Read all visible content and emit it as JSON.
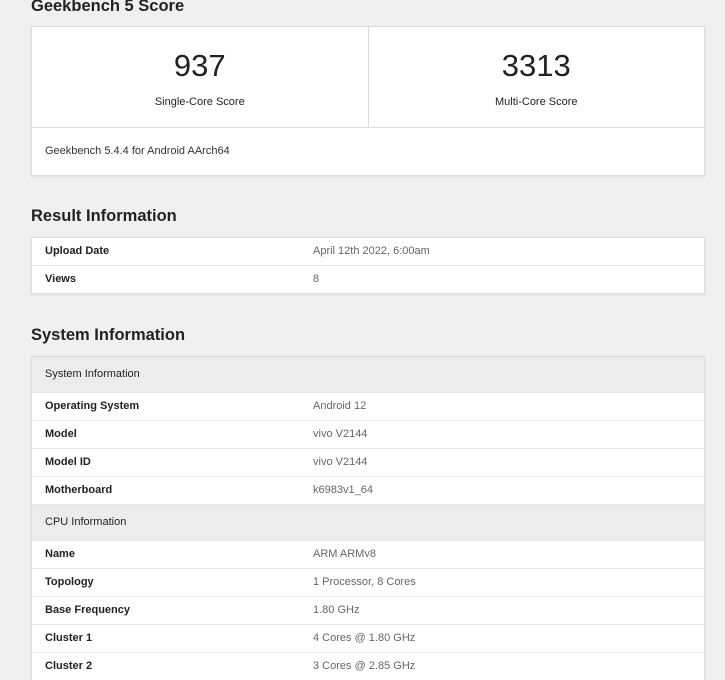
{
  "score_section": {
    "title": "Geekbench 5 Score",
    "single_value": "937",
    "single_label": "Single-Core Score",
    "multi_value": "3313",
    "multi_label": "Multi-Core Score",
    "version": "Geekbench 5.4.4 for Android AArch64"
  },
  "result_section": {
    "title": "Result Information",
    "rows": [
      {
        "k": "Upload Date",
        "v": "April 12th 2022, 6:00am"
      },
      {
        "k": "Views",
        "v": "8"
      }
    ]
  },
  "system_section": {
    "title": "System Information",
    "groups": [
      {
        "header": "System Information",
        "rows": [
          {
            "k": "Operating System",
            "v": "Android 12"
          },
          {
            "k": "Model",
            "v": "vivo V2144"
          },
          {
            "k": "Model ID",
            "v": "vivo V2144"
          },
          {
            "k": "Motherboard",
            "v": "k6983v1_64"
          }
        ]
      },
      {
        "header": "CPU Information",
        "rows": [
          {
            "k": "Name",
            "v": "ARM ARMv8"
          },
          {
            "k": "Topology",
            "v": "1 Processor, 8 Cores"
          },
          {
            "k": "Base Frequency",
            "v": "1.80 GHz"
          },
          {
            "k": "Cluster 1",
            "v": "4 Cores @ 1.80 GHz"
          },
          {
            "k": "Cluster 2",
            "v": "3 Cores @ 2.85 GHz"
          }
        ]
      }
    ]
  }
}
